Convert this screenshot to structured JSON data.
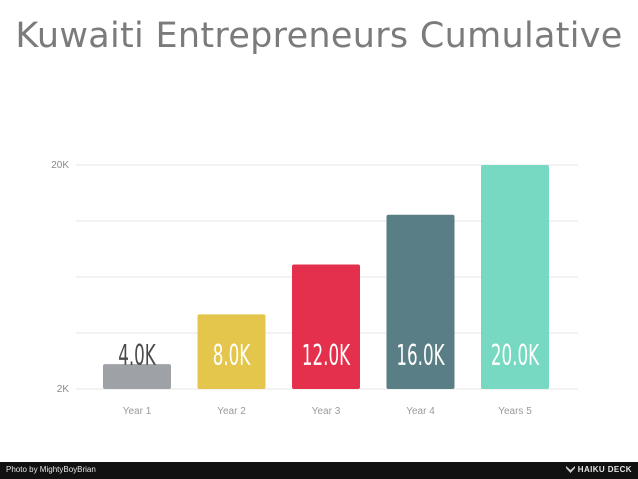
{
  "chart_data": {
    "type": "bar",
    "title": "Kuwaiti Entrepreneurs Cumulative",
    "categories": [
      "Year 1",
      "Year 2",
      "Year 3",
      "Year 4",
      "Years 5"
    ],
    "values": [
      4000,
      8000,
      12000,
      16000,
      20000
    ],
    "data_labels": [
      "4.0K",
      "8.0K",
      "12.0K",
      "16.0K",
      "20.0K"
    ],
    "colors": [
      "#9ea2a6",
      "#e3c64b",
      "#e5304d",
      "#5a7e85",
      "#77d9c2"
    ],
    "label_colors": [
      "#4a4a4a",
      "#ffffff",
      "#ffffff",
      "#ffffff",
      "#ffffff"
    ],
    "ylim": [
      2000,
      20000
    ],
    "yticks": [
      2000,
      20000
    ],
    "ytick_labels": [
      "2K",
      "20K"
    ],
    "grid": true,
    "xlabel": "",
    "ylabel": ""
  },
  "footer": {
    "credit": "Photo by MightyBoyBrian",
    "brand": "HAIKU DECK"
  }
}
